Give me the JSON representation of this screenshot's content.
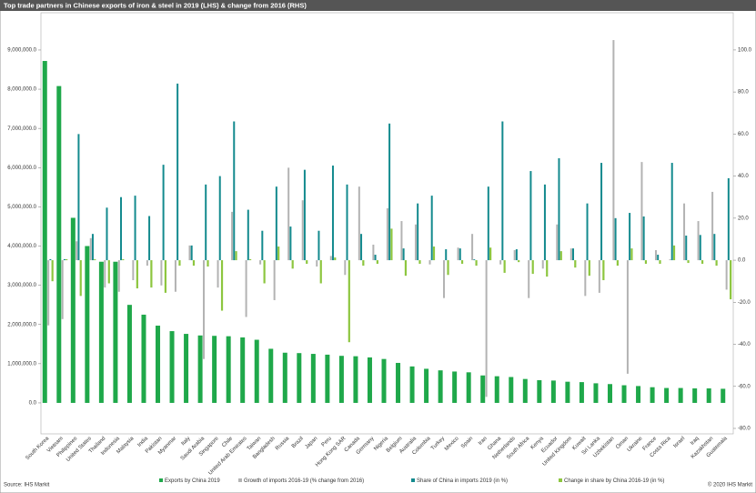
{
  "chart_data": {
    "type": "bar",
    "title": "Top trade partners in Chinese exports of iron & steel in 2019 (LHS) & change from 2016 (RHS)",
    "source": "Source: IHS Markit",
    "copyright": "© 2020 IHS Markit",
    "categories": [
      "South Korea",
      "Vietnam",
      "Philippines",
      "United States",
      "Thailand",
      "Indonesia",
      "Malaysia",
      "India",
      "Pakistan",
      "Myanmar",
      "Italy",
      "Saudi Arabia",
      "Singapore",
      "Chile",
      "United Arab Emirates",
      "Taiwan",
      "Bangladesh",
      "Russia",
      "Brazil",
      "Japan",
      "Peru",
      "Hong Kong SAR",
      "Canada",
      "Germany",
      "Nigeria",
      "Belgium",
      "Australia",
      "Colombia",
      "Turkey",
      "Mexico",
      "Spain",
      "Iran",
      "Ghana",
      "Netherlands",
      "South Africa",
      "Kenya",
      "Ecuador",
      "United Kingdom",
      "Kuwait",
      "Sri Lanka",
      "Uzbekistan",
      "Oman",
      "Ukraine",
      "France",
      "Costa Rica",
      "Israel",
      "Iraq",
      "Kazakhstan",
      "Guatemala"
    ],
    "series": [
      {
        "name": "Exports by China 2019",
        "color": "#1fa84a",
        "values": [
          8720000,
          8080000,
          4720000,
          4000000,
          3600000,
          3600000,
          2500000,
          2250000,
          1970000,
          1830000,
          1760000,
          1720000,
          1710000,
          1700000,
          1670000,
          1610000,
          1380000,
          1280000,
          1270000,
          1250000,
          1230000,
          1200000,
          1190000,
          1160000,
          1120000,
          1020000,
          930000,
          870000,
          830000,
          800000,
          780000,
          700000,
          680000,
          660000,
          610000,
          580000,
          570000,
          540000,
          530000,
          500000,
          480000,
          450000,
          430000,
          400000,
          380000,
          380000,
          370000,
          370000,
          360000
        ]
      },
      {
        "name": "Growth of imports 2016-19 (% change from 2016)",
        "color": "#b3b3b3",
        "axis": "y2",
        "values": [
          -31,
          -28,
          9,
          10.5,
          -13,
          -15,
          -9.5,
          -2.6,
          -12,
          -15,
          7,
          -47,
          -13,
          23,
          -27,
          -2,
          -19,
          44,
          28.5,
          -3,
          2,
          -7,
          35,
          7.4,
          24.7,
          18.6,
          17,
          -2,
          -18,
          6,
          12.5,
          -65,
          -2,
          4.8,
          -18,
          -4,
          17,
          5.6,
          -17,
          -15.5,
          104.7,
          -54,
          46.7,
          4.8,
          0.4,
          27,
          18.6,
          32.5,
          -14
        ]
      },
      {
        "name": "Share of China in imports 2019 (in %)",
        "color": "#138a8e",
        "axis": "y2",
        "values": [
          0.5,
          0.5,
          60,
          12.5,
          25,
          30,
          30.7,
          21,
          45.4,
          84,
          7,
          36,
          40,
          66,
          24,
          14,
          35,
          16,
          43,
          14,
          45,
          36,
          12.5,
          2.6,
          65,
          5.6,
          27,
          30.7,
          5.2,
          5.6,
          0.4,
          35,
          66,
          5.2,
          42.4,
          36,
          48.5,
          5.6,
          27,
          46.3,
          20,
          22.5,
          20.8,
          2.6,
          46.3,
          11.7,
          12,
          12.5,
          39
        ]
      },
      {
        "name": "Change in share by China 2016-19 (in %)",
        "color": "#8dc63f",
        "axis": "y2",
        "values": [
          -10,
          0.5,
          -17,
          0.5,
          -11,
          0.5,
          -13.4,
          -13,
          -15.5,
          -2.6,
          -2.6,
          -3,
          -24,
          4.3,
          0.5,
          -11,
          6.5,
          -4,
          -1.7,
          -11,
          1.3,
          -39,
          -2.6,
          -1.7,
          15,
          -7.4,
          -1.7,
          6.5,
          -7,
          -1.7,
          -2.6,
          6,
          -6,
          -0.9,
          -6.5,
          -7.8,
          4.3,
          -3.5,
          -7.4,
          -9.5,
          -2.6,
          5.6,
          -1.7,
          -1.7,
          7,
          -1.3,
          -1.7,
          -2.6,
          -18.6
        ]
      }
    ],
    "ylim": [
      -790000,
      9950000
    ],
    "yticks": [
      {
        "value": 0,
        "label": "0.0"
      },
      {
        "value": 1000000,
        "label": "1,000,000.0"
      },
      {
        "value": 2000000,
        "label": "2,000,000.0"
      },
      {
        "value": 3000000,
        "label": "3,000,000.0"
      },
      {
        "value": 4000000,
        "label": "4,000,000.0"
      },
      {
        "value": 5000000,
        "label": "5,000,000.0"
      },
      {
        "value": 6000000,
        "label": "6,000,000.0"
      },
      {
        "value": 7000000,
        "label": "7,000,000.0"
      },
      {
        "value": 8000000,
        "label": "8,000,000.0"
      },
      {
        "value": 9000000,
        "label": "9,000,000.0"
      }
    ],
    "y2lim": [
      -82.6,
      117.7
    ],
    "y2ticks": [
      {
        "value": -80,
        "label": "-80.0"
      },
      {
        "value": -60,
        "label": "-60.0"
      },
      {
        "value": -40,
        "label": "-40.0"
      },
      {
        "value": -20,
        "label": "-20.0"
      },
      {
        "value": 0,
        "label": "0.0"
      },
      {
        "value": 20,
        "label": "20.0"
      },
      {
        "value": 40,
        "label": "40.0"
      },
      {
        "value": 60,
        "label": "60.0"
      },
      {
        "value": 80,
        "label": "80.0"
      },
      {
        "value": 100,
        "label": "100.0"
      }
    ]
  }
}
